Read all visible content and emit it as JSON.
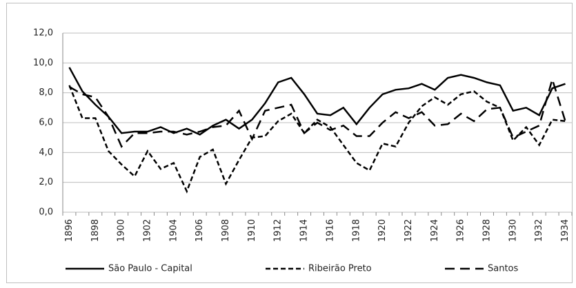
{
  "chart_data": {
    "type": "line",
    "categories": [
      "1896",
      null,
      "1898",
      null,
      "1900",
      null,
      "1902",
      null,
      "1904",
      null,
      "1906",
      null,
      "1908",
      null,
      "1910",
      null,
      "1912",
      null,
      "1914",
      null,
      "1916",
      null,
      "1918",
      null,
      "1920",
      null,
      "1922",
      null,
      "1924",
      null,
      "1926",
      null,
      "1928",
      null,
      "1930",
      null,
      "1932",
      null,
      "1934"
    ],
    "series": [
      {
        "name": "São Paulo - Capital",
        "color": "#000000",
        "dash": "solid",
        "values": [
          9.7,
          8.1,
          7.2,
          6.4,
          5.3,
          5.4,
          5.4,
          5.7,
          5.3,
          5.6,
          5.2,
          5.8,
          6.2,
          5.6,
          6.2,
          7.3,
          8.7,
          9.0,
          7.9,
          6.6,
          6.5,
          7.0,
          5.9,
          7.0,
          7.9,
          8.2,
          8.3,
          8.6,
          8.2,
          9.0,
          9.2,
          9.0,
          8.7,
          8.5,
          6.8,
          7.0,
          6.5,
          8.3,
          8.6
        ]
      },
      {
        "name": "Ribeirão Preto",
        "color": "#000000",
        "dash": "short",
        "values": [
          8.5,
          6.3,
          6.3,
          4.1,
          3.2,
          2.4,
          4.1,
          2.9,
          3.3,
          1.4,
          3.7,
          4.2,
          1.9,
          3.5,
          5.0,
          5.1,
          6.1,
          6.6,
          5.3,
          6.2,
          5.7,
          4.5,
          3.3,
          2.8,
          4.6,
          4.4,
          6.0,
          7.1,
          7.7,
          7.2,
          7.9,
          8.1,
          7.4,
          7.0,
          4.8,
          5.7,
          4.5,
          6.2,
          6.1
        ]
      },
      {
        "name": "Santos",
        "color": "#000000",
        "dash": "long",
        "values": [
          8.4,
          7.9,
          7.7,
          6.4,
          4.4,
          5.3,
          5.3,
          5.4,
          5.4,
          5.2,
          5.4,
          5.7,
          5.8,
          6.8,
          4.9,
          6.8,
          7.0,
          7.2,
          5.3,
          6.0,
          5.5,
          5.8,
          5.1,
          5.1,
          6.0,
          6.7,
          6.3,
          6.7,
          5.8,
          5.9,
          6.6,
          6.1,
          6.9,
          7.0,
          5.0,
          5.4,
          5.8,
          8.9,
          6.1
        ]
      }
    ],
    "ylim": [
      0,
      12
    ],
    "yticks": [
      {
        "value": 0,
        "label": "0,0"
      },
      {
        "value": 2,
        "label": "2,0"
      },
      {
        "value": 4,
        "label": "4,0"
      },
      {
        "value": 6,
        "label": "6,0"
      },
      {
        "value": 8,
        "label": "8,0"
      },
      {
        "value": 10,
        "label": "10,0"
      },
      {
        "value": 12,
        "label": "12,0"
      }
    ],
    "grid": true,
    "legend": "bottom"
  }
}
